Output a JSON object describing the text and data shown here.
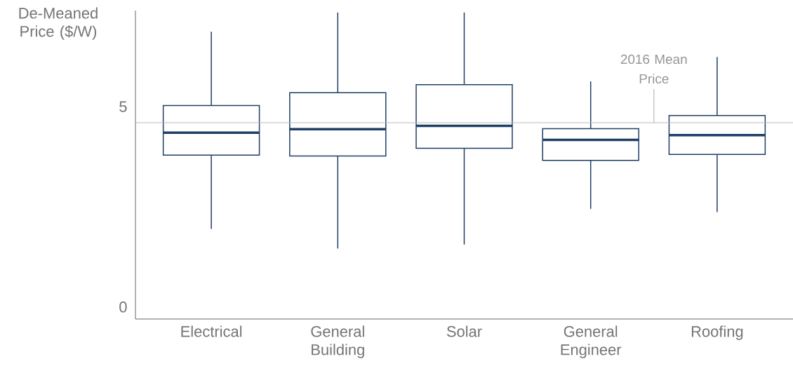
{
  "chart_data": {
    "type": "box",
    "ylabel": "De-Meaned Price ($/W)",
    "categories": [
      "Electrical",
      "General Building",
      "Solar",
      "General Engineer",
      "Roofing"
    ],
    "color": "#1f3f66",
    "boxes": [
      {
        "low": 1.95,
        "q1": 3.79,
        "median": 4.35,
        "q3": 5.03,
        "high": 6.87
      },
      {
        "low": 1.46,
        "q1": 3.77,
        "median": 4.44,
        "q3": 5.35,
        "high": 7.35
      },
      {
        "low": 1.56,
        "q1": 3.96,
        "median": 4.52,
        "q3": 5.55,
        "high": 7.35
      },
      {
        "low": 2.45,
        "q1": 3.66,
        "median": 4.17,
        "q3": 4.45,
        "high": 5.63
      },
      {
        "low": 2.37,
        "q1": 3.81,
        "median": 4.29,
        "q3": 4.78,
        "high": 6.24
      }
    ],
    "ylim": [
      -0.3,
      7.4
    ],
    "yticks": [
      0,
      5
    ],
    "ref_lines": [
      {
        "axis": "y",
        "value": 4.6,
        "label": "2016 Mean Price",
        "color": "#bbbbbb"
      }
    ]
  }
}
